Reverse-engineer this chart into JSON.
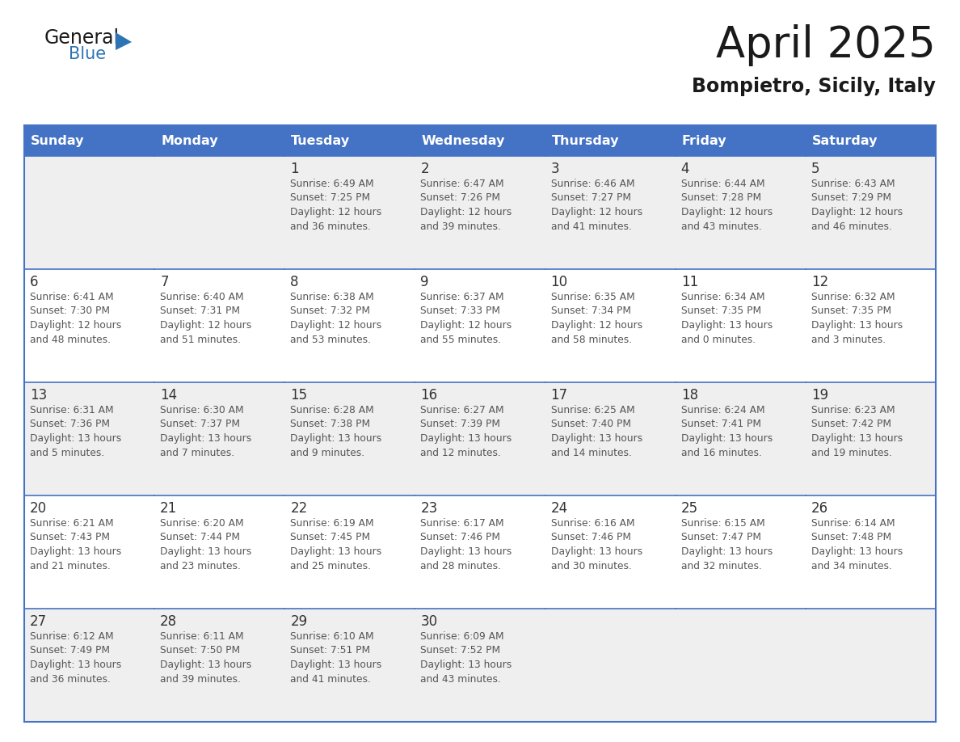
{
  "title": "April 2025",
  "subtitle": "Bompietro, Sicily, Italy",
  "days_of_week": [
    "Sunday",
    "Monday",
    "Tuesday",
    "Wednesday",
    "Thursday",
    "Friday",
    "Saturday"
  ],
  "header_bg": "#4472C4",
  "header_text": "#FFFFFF",
  "row_bg_odd": "#EFEFEF",
  "row_bg_even": "#FFFFFF",
  "border_color": "#4472C4",
  "day_text_color": "#333333",
  "info_text_color": "#555555",
  "title_color": "#1a1a1a",
  "subtitle_color": "#1a1a1a",
  "general_color": "#1a1a1a",
  "blue_color": "#2E74B5",
  "logo_general": "General",
  "logo_blue": "Blue",
  "calendar": [
    [
      {
        "day": "",
        "lines": []
      },
      {
        "day": "",
        "lines": []
      },
      {
        "day": "1",
        "lines": [
          "Sunrise: 6:49 AM",
          "Sunset: 7:25 PM",
          "Daylight: 12 hours",
          "and 36 minutes."
        ]
      },
      {
        "day": "2",
        "lines": [
          "Sunrise: 6:47 AM",
          "Sunset: 7:26 PM",
          "Daylight: 12 hours",
          "and 39 minutes."
        ]
      },
      {
        "day": "3",
        "lines": [
          "Sunrise: 6:46 AM",
          "Sunset: 7:27 PM",
          "Daylight: 12 hours",
          "and 41 minutes."
        ]
      },
      {
        "day": "4",
        "lines": [
          "Sunrise: 6:44 AM",
          "Sunset: 7:28 PM",
          "Daylight: 12 hours",
          "and 43 minutes."
        ]
      },
      {
        "day": "5",
        "lines": [
          "Sunrise: 6:43 AM",
          "Sunset: 7:29 PM",
          "Daylight: 12 hours",
          "and 46 minutes."
        ]
      }
    ],
    [
      {
        "day": "6",
        "lines": [
          "Sunrise: 6:41 AM",
          "Sunset: 7:30 PM",
          "Daylight: 12 hours",
          "and 48 minutes."
        ]
      },
      {
        "day": "7",
        "lines": [
          "Sunrise: 6:40 AM",
          "Sunset: 7:31 PM",
          "Daylight: 12 hours",
          "and 51 minutes."
        ]
      },
      {
        "day": "8",
        "lines": [
          "Sunrise: 6:38 AM",
          "Sunset: 7:32 PM",
          "Daylight: 12 hours",
          "and 53 minutes."
        ]
      },
      {
        "day": "9",
        "lines": [
          "Sunrise: 6:37 AM",
          "Sunset: 7:33 PM",
          "Daylight: 12 hours",
          "and 55 minutes."
        ]
      },
      {
        "day": "10",
        "lines": [
          "Sunrise: 6:35 AM",
          "Sunset: 7:34 PM",
          "Daylight: 12 hours",
          "and 58 minutes."
        ]
      },
      {
        "day": "11",
        "lines": [
          "Sunrise: 6:34 AM",
          "Sunset: 7:35 PM",
          "Daylight: 13 hours",
          "and 0 minutes."
        ]
      },
      {
        "day": "12",
        "lines": [
          "Sunrise: 6:32 AM",
          "Sunset: 7:35 PM",
          "Daylight: 13 hours",
          "and 3 minutes."
        ]
      }
    ],
    [
      {
        "day": "13",
        "lines": [
          "Sunrise: 6:31 AM",
          "Sunset: 7:36 PM",
          "Daylight: 13 hours",
          "and 5 minutes."
        ]
      },
      {
        "day": "14",
        "lines": [
          "Sunrise: 6:30 AM",
          "Sunset: 7:37 PM",
          "Daylight: 13 hours",
          "and 7 minutes."
        ]
      },
      {
        "day": "15",
        "lines": [
          "Sunrise: 6:28 AM",
          "Sunset: 7:38 PM",
          "Daylight: 13 hours",
          "and 9 minutes."
        ]
      },
      {
        "day": "16",
        "lines": [
          "Sunrise: 6:27 AM",
          "Sunset: 7:39 PM",
          "Daylight: 13 hours",
          "and 12 minutes."
        ]
      },
      {
        "day": "17",
        "lines": [
          "Sunrise: 6:25 AM",
          "Sunset: 7:40 PM",
          "Daylight: 13 hours",
          "and 14 minutes."
        ]
      },
      {
        "day": "18",
        "lines": [
          "Sunrise: 6:24 AM",
          "Sunset: 7:41 PM",
          "Daylight: 13 hours",
          "and 16 minutes."
        ]
      },
      {
        "day": "19",
        "lines": [
          "Sunrise: 6:23 AM",
          "Sunset: 7:42 PM",
          "Daylight: 13 hours",
          "and 19 minutes."
        ]
      }
    ],
    [
      {
        "day": "20",
        "lines": [
          "Sunrise: 6:21 AM",
          "Sunset: 7:43 PM",
          "Daylight: 13 hours",
          "and 21 minutes."
        ]
      },
      {
        "day": "21",
        "lines": [
          "Sunrise: 6:20 AM",
          "Sunset: 7:44 PM",
          "Daylight: 13 hours",
          "and 23 minutes."
        ]
      },
      {
        "day": "22",
        "lines": [
          "Sunrise: 6:19 AM",
          "Sunset: 7:45 PM",
          "Daylight: 13 hours",
          "and 25 minutes."
        ]
      },
      {
        "day": "23",
        "lines": [
          "Sunrise: 6:17 AM",
          "Sunset: 7:46 PM",
          "Daylight: 13 hours",
          "and 28 minutes."
        ]
      },
      {
        "day": "24",
        "lines": [
          "Sunrise: 6:16 AM",
          "Sunset: 7:46 PM",
          "Daylight: 13 hours",
          "and 30 minutes."
        ]
      },
      {
        "day": "25",
        "lines": [
          "Sunrise: 6:15 AM",
          "Sunset: 7:47 PM",
          "Daylight: 13 hours",
          "and 32 minutes."
        ]
      },
      {
        "day": "26",
        "lines": [
          "Sunrise: 6:14 AM",
          "Sunset: 7:48 PM",
          "Daylight: 13 hours",
          "and 34 minutes."
        ]
      }
    ],
    [
      {
        "day": "27",
        "lines": [
          "Sunrise: 6:12 AM",
          "Sunset: 7:49 PM",
          "Daylight: 13 hours",
          "and 36 minutes."
        ]
      },
      {
        "day": "28",
        "lines": [
          "Sunrise: 6:11 AM",
          "Sunset: 7:50 PM",
          "Daylight: 13 hours",
          "and 39 minutes."
        ]
      },
      {
        "day": "29",
        "lines": [
          "Sunrise: 6:10 AM",
          "Sunset: 7:51 PM",
          "Daylight: 13 hours",
          "and 41 minutes."
        ]
      },
      {
        "day": "30",
        "lines": [
          "Sunrise: 6:09 AM",
          "Sunset: 7:52 PM",
          "Daylight: 13 hours",
          "and 43 minutes."
        ]
      },
      {
        "day": "",
        "lines": []
      },
      {
        "day": "",
        "lines": []
      },
      {
        "day": "",
        "lines": []
      }
    ]
  ]
}
